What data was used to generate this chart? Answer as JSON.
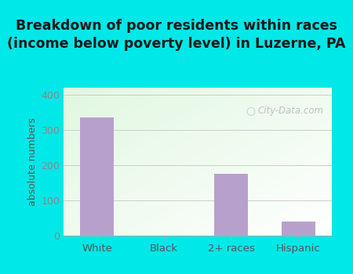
{
  "categories": [
    "White",
    "Black",
    "2+ races",
    "Hispanic"
  ],
  "values": [
    335,
    0,
    175,
    40
  ],
  "bar_color": "#b8a0cc",
  "title": "Breakdown of poor residents within races\n(income below poverty level) in Luzerne, PA",
  "ylabel": "absolute numbers",
  "ylim": [
    0,
    420
  ],
  "yticks": [
    0,
    100,
    200,
    300,
    400
  ],
  "outer_bg": "#00e8e8",
  "title_fontsize": 12.5,
  "watermark": "City-Data.com",
  "grid_color": "#cccccc",
  "tick_color": "#888888",
  "label_color": "#555555"
}
